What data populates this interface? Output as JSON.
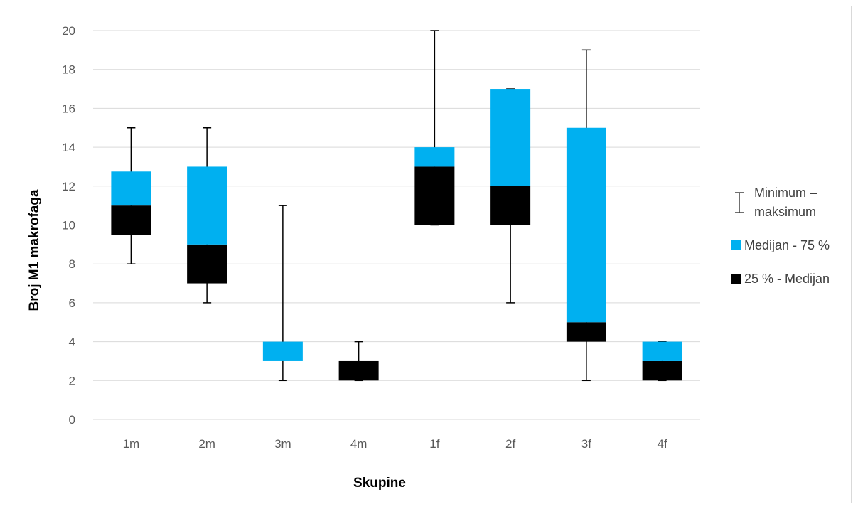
{
  "colors": {
    "upper_box": "#00B0F0",
    "lower_box": "#000000",
    "whisker": "#000000",
    "grid": "#d9d9d9"
  },
  "chart_data": {
    "type": "bar",
    "subtype": "stacked-box-plot",
    "title": "",
    "xlabel": "Skupine",
    "ylabel": "Broj M1 makrofaga",
    "ylim": [
      0,
      20
    ],
    "yticks": [
      "0",
      "2",
      "4",
      "6",
      "8",
      "10",
      "12",
      "14",
      "16",
      "18",
      "20"
    ],
    "grid": true,
    "legend_position": "right",
    "categories": [
      "1m",
      "2m",
      "3m",
      "4m",
      "1f",
      "2f",
      "3f",
      "4f"
    ],
    "series": [
      {
        "name": "25 % - Medijan",
        "q1": [
          9.5,
          7,
          3,
          2,
          10,
          10,
          4,
          2
        ],
        "median": [
          11,
          9,
          3,
          3,
          13,
          12,
          5,
          3
        ]
      },
      {
        "name": "Medijan - 75 %",
        "median": [
          11,
          9,
          3,
          3,
          13,
          12,
          5,
          3
        ],
        "q3": [
          12.75,
          13,
          4,
          3,
          14,
          17,
          15,
          4
        ]
      },
      {
        "name": "Minimum – maksimum",
        "min": [
          8,
          6,
          2,
          2,
          10,
          6,
          2,
          2
        ],
        "max": [
          15,
          15,
          11,
          4,
          20,
          17,
          19,
          4
        ]
      }
    ],
    "legend": [
      {
        "label_line1": "Minimum –",
        "label_line2": "maksimum",
        "symbol": "whisker"
      },
      {
        "label": "Medijan - 75 %",
        "symbol": "upper_box"
      },
      {
        "label": "25 % - Medijan",
        "symbol": "lower_box"
      }
    ]
  }
}
